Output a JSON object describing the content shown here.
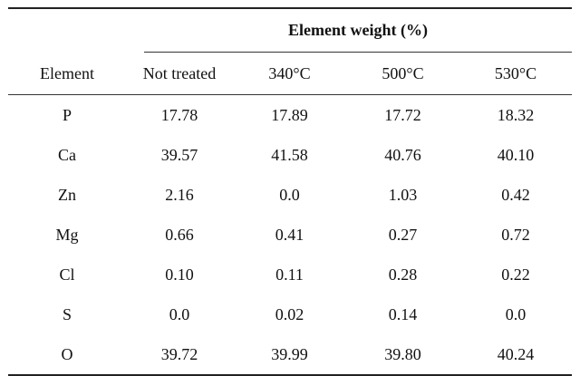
{
  "table": {
    "group_header": "Element weight (%)",
    "columns": [
      "Element",
      "Not treated",
      "340°C",
      "500°C",
      "530°C"
    ],
    "rows": [
      [
        "P",
        "17.78",
        "17.89",
        "17.72",
        "18.32"
      ],
      [
        "Ca",
        "39.57",
        "41.58",
        "40.76",
        "40.10"
      ],
      [
        "Zn",
        "2.16",
        "0.0",
        "1.03",
        "0.42"
      ],
      [
        "Mg",
        "0.66",
        "0.41",
        "0.27",
        "0.72"
      ],
      [
        "Cl",
        "0.10",
        "0.11",
        "0.28",
        "0.22"
      ],
      [
        "S",
        "0.0",
        "0.02",
        "0.14",
        "0.0"
      ],
      [
        "O",
        "39.72",
        "39.99",
        "39.80",
        "40.24"
      ]
    ]
  }
}
